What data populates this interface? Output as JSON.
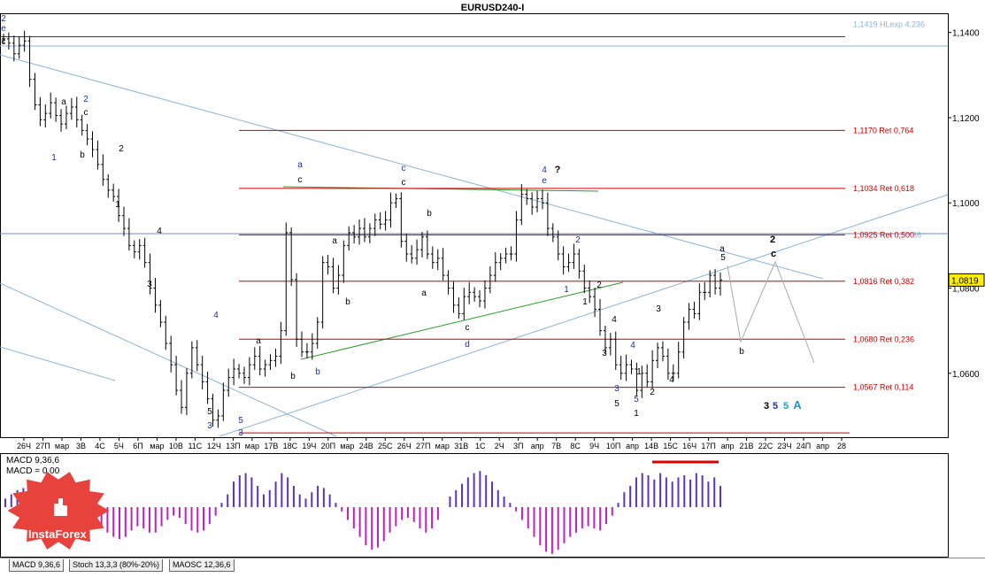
{
  "window": {
    "title": "EURUSD240-I"
  },
  "logo": {
    "text": "InstaForex"
  },
  "indicator_panel": {
    "line1": "MACD 9,36,6",
    "line2": "MACD = 0,00"
  },
  "tabs": [
    {
      "label": "MACD 9,36,6"
    },
    {
      "label": "Stoch 13,3,3 (80%-20%)"
    },
    {
      "label": "MAOSC 12,36,6"
    }
  ],
  "colors": {
    "fib_line": "#cc0000",
    "channel": "#8ab4d8",
    "trend": "#2a9a2a",
    "macd_pos": "#5a35c0",
    "macd_neg": "#c020c0",
    "wave_blue": "#1a2fb0",
    "wave_black": "#000000",
    "current_price_bg": "#ffee00",
    "logo_red": "#e8423c"
  },
  "chart_data": {
    "type": "candlestick",
    "symbol": "EURUSD240-I",
    "ylim": [
      1.045,
      1.1445
    ],
    "y_ticks": [
      "1,1400",
      "1,1200",
      "1,1000",
      "1,0800",
      "1,0600"
    ],
    "y_tick_values": [
      1.14,
      1.12,
      1.1,
      1.08,
      1.06
    ],
    "x_ticks": [
      "26Ч",
      "27П",
      "мар",
      "3В",
      "4С",
      "5Ч",
      "6П",
      "мар",
      "10В",
      "11С",
      "12Ч",
      "13П",
      "мар",
      "17В",
      "18С",
      "19Ч",
      "20П",
      "мар",
      "24В",
      "25С",
      "26Ч",
      "27П",
      "мар",
      "31В",
      "1С",
      "2Ч",
      "3П",
      "апр",
      "7В",
      "8С",
      "9Ч",
      "10П",
      "апр",
      "14В",
      "15С",
      "16Ч",
      "17П",
      "апр",
      "21В",
      "22С",
      "23Ч",
      "24П",
      "апр",
      "28"
    ],
    "current_price": {
      "label": "1,0819",
      "value": 1.0819
    },
    "fib_levels": [
      {
        "label": "",
        "value": 1.139
      },
      {
        "label": "1,1170 Ret 0,764",
        "value": 1.117
      },
      {
        "label": "1,1034 Ret 0,618",
        "value": 1.1034
      },
      {
        "label": "1,0925 Ret 0,500",
        "value": 1.0925
      },
      {
        "label": "1,0816 Ret 0,382",
        "value": 1.0816
      },
      {
        "label": "1,0680 Ret 0,236",
        "value": 1.068
      },
      {
        "label": "1,0567 Ret 0,114",
        "value": 1.0567
      },
      {
        "label": "",
        "value": 1.046
      }
    ],
    "hlines": [
      {
        "label": "1,1419 HLexp 4,236",
        "value": 1.1419
      },
      {
        "label": "1,0925 Ret 0,500",
        "value": 1.0925,
        "muted": "36"
      }
    ],
    "candles_close": [
      1.1385,
      1.1375,
      1.135,
      1.137,
      1.138,
      1.129,
      1.123,
      1.1195,
      1.121,
      1.1235,
      1.1205,
      1.1185,
      1.121,
      1.1225,
      1.1195,
      1.117,
      1.115,
      1.1125,
      1.109,
      1.1055,
      1.103,
      1.1015,
      1.097,
      1.094,
      1.09,
      1.0885,
      1.09,
      1.086,
      1.08,
      1.076,
      1.072,
      1.067,
      1.062,
      1.056,
      1.052,
      1.06,
      1.066,
      1.062,
      1.058,
      1.054,
      1.049,
      1.05,
      1.056,
      1.059,
      1.061,
      1.06,
      1.059,
      1.062,
      1.064,
      1.061,
      1.062,
      1.063,
      1.064,
      1.07,
      1.093,
      1.082,
      1.068,
      1.065,
      1.065,
      1.067,
      1.072,
      1.086,
      1.085,
      1.08,
      1.083,
      1.09,
      1.093,
      1.092,
      1.094,
      1.092,
      1.094,
      1.096,
      1.095,
      1.096,
      1.1,
      1.101,
      1.091,
      1.088,
      1.087,
      1.089,
      1.092,
      1.088,
      1.086,
      1.087,
      1.083,
      1.08,
      1.076,
      1.074,
      1.078,
      1.079,
      1.078,
      1.077,
      1.08,
      1.083,
      1.086,
      1.087,
      1.088,
      1.088,
      1.096,
      1.102,
      1.101,
      1.099,
      1.101,
      1.1,
      1.094,
      1.092,
      1.088,
      1.085,
      1.086,
      1.088,
      1.084,
      1.08,
      1.078,
      1.075,
      1.07,
      1.066,
      1.068,
      1.062,
      1.06,
      1.062,
      1.061,
      1.056,
      1.06,
      1.058,
      1.063,
      1.066,
      1.064,
      1.06,
      1.06,
      1.065,
      1.072,
      1.075,
      1.074,
      1.079,
      1.079,
      1.083,
      1.08,
      1.0819
    ],
    "wave_labels": [
      {
        "text": "2",
        "color": "blue"
      },
      {
        "text": "e",
        "color": "blue"
      },
      {
        "text": "c",
        "color": "black"
      },
      {
        "text": "a",
        "color": "black"
      },
      {
        "text": "2",
        "color": "blue"
      },
      {
        "text": "c",
        "color": "black"
      },
      {
        "text": "1",
        "color": "blue"
      },
      {
        "text": "b",
        "color": "black"
      },
      {
        "text": "2",
        "color": "black"
      },
      {
        "text": "1",
        "color": "black"
      },
      {
        "text": "4",
        "color": "black"
      },
      {
        "text": "3",
        "color": "black"
      },
      {
        "text": "4",
        "color": "blue"
      },
      {
        "text": "5",
        "color": "black"
      },
      {
        "text": "3",
        "color": "blue"
      },
      {
        "text": "5",
        "color": "blue"
      },
      {
        "text": "3",
        "color": "blue"
      },
      {
        "text": "a",
        "color": "black"
      },
      {
        "text": "b",
        "color": "black"
      },
      {
        "text": "b",
        "color": "blue"
      },
      {
        "text": "a",
        "color": "blue"
      },
      {
        "text": "c",
        "color": "black"
      },
      {
        "text": "a",
        "color": "black"
      },
      {
        "text": "b",
        "color": "black"
      },
      {
        "text": "c",
        "color": "blue"
      },
      {
        "text": "c",
        "color": "black"
      },
      {
        "text": "b",
        "color": "black"
      },
      {
        "text": "a",
        "color": "black"
      },
      {
        "text": "c",
        "color": "black"
      },
      {
        "text": "d",
        "color": "blue"
      },
      {
        "text": "4",
        "color": "blue"
      },
      {
        "text": "?",
        "color": "black"
      },
      {
        "text": "e",
        "color": "blue"
      },
      {
        "text": "2",
        "color": "blue"
      },
      {
        "text": "1",
        "color": "blue"
      },
      {
        "text": "2",
        "color": "black"
      },
      {
        "text": "1",
        "color": "black"
      },
      {
        "text": "4",
        "color": "black"
      },
      {
        "text": "3",
        "color": "black"
      },
      {
        "text": "4",
        "color": "blue"
      },
      {
        "text": "1",
        "color": "black"
      },
      {
        "text": "5",
        "color": "black"
      },
      {
        "text": "3",
        "color": "blue"
      },
      {
        "text": "5",
        "color": "blue"
      },
      {
        "text": "1",
        "color": "black"
      },
      {
        "text": "2",
        "color": "black"
      },
      {
        "text": "4",
        "color": "black"
      },
      {
        "text": "3",
        "color": "black"
      },
      {
        "text": "a",
        "color": "black"
      },
      {
        "text": "5",
        "color": "black"
      },
      {
        "text": "b",
        "color": "black"
      },
      {
        "text": "2",
        "color": "black"
      },
      {
        "text": "c",
        "color": "black"
      },
      {
        "text": "3",
        "color": "black"
      },
      {
        "text": "5",
        "color": "blue"
      },
      {
        "text": "5",
        "color": "teal"
      },
      {
        "text": "A",
        "color": "teal"
      }
    ],
    "macd_values": [
      0.2,
      0.3,
      0.4,
      0.45,
      0.4,
      0.3,
      0.1,
      0.0,
      -0.1,
      -0.25,
      -0.4,
      -0.55,
      -0.6,
      -0.5,
      -0.4,
      -0.35,
      -0.45,
      -0.6,
      -0.7,
      -0.75,
      -0.7,
      -0.55,
      -0.45,
      -0.5,
      -0.6,
      -0.6,
      -0.45,
      -0.3,
      -0.2,
      -0.25,
      -0.4,
      -0.55,
      -0.6,
      -0.55,
      -0.4,
      -0.2,
      0.1,
      0.3,
      0.6,
      0.75,
      0.8,
      0.7,
      0.5,
      0.3,
      0.4,
      0.6,
      0.8,
      0.7,
      0.5,
      0.3,
      0.2,
      0.35,
      0.5,
      0.45,
      0.3,
      0.1,
      -0.1,
      -0.3,
      -0.5,
      -0.7,
      -0.9,
      -1.0,
      -0.95,
      -0.8,
      -0.6,
      -0.45,
      -0.3,
      -0.25,
      -0.35,
      -0.5,
      -0.6,
      -0.5,
      -0.3,
      0.0,
      0.25,
      0.4,
      0.55,
      0.7,
      0.8,
      0.85,
      0.75,
      0.6,
      0.4,
      0.25,
      0.1,
      -0.1,
      -0.3,
      -0.5,
      -0.7,
      -0.9,
      -1.05,
      -1.1,
      -1.0,
      -0.85,
      -0.7,
      -0.6,
      -0.5,
      -0.45,
      -0.5,
      -0.55,
      -0.4,
      -0.2,
      0.1,
      0.35,
      0.5,
      0.7,
      0.8,
      0.75,
      0.65,
      0.8,
      0.7,
      0.6,
      0.7,
      0.75,
      0.65,
      0.8,
      0.75,
      0.6,
      0.7,
      0.5
    ]
  }
}
